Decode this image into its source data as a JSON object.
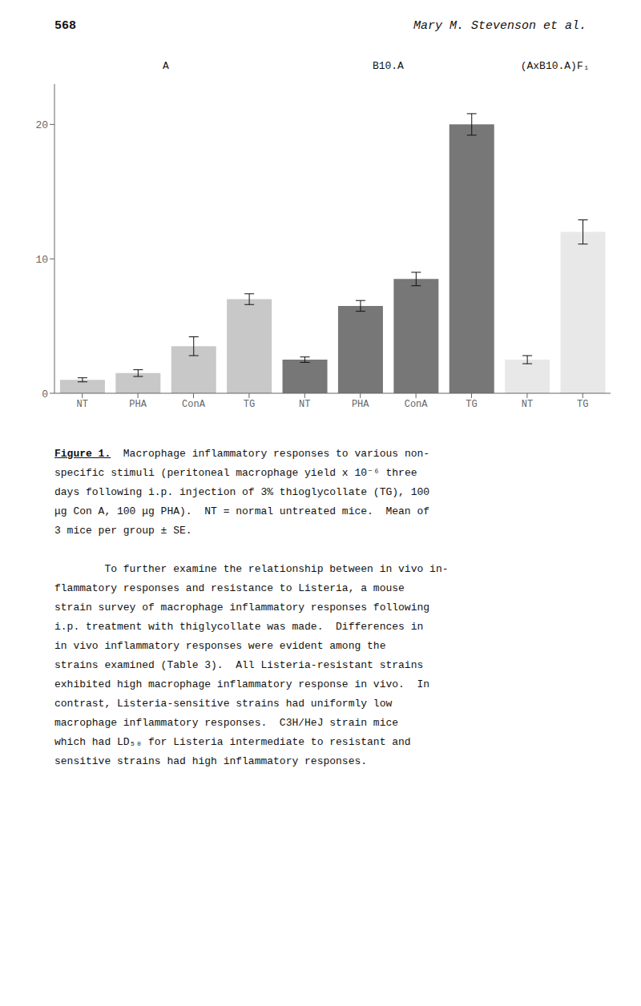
{
  "chart_data": {
    "type": "bar",
    "title": "568",
    "subtitle": "Mary M. Stevenson et al.",
    "categories": [
      "NT",
      "PHA",
      "ConA",
      "TG",
      "NT",
      "PHA",
      "ConA",
      "TG",
      "NT",
      "TG"
    ],
    "groups": [
      "A",
      "A",
      "A",
      "A",
      "B10.A",
      "B10.A",
      "B10.A",
      "B10.A",
      "(AxB10.A)F₁",
      "(AxB10.A)F₁"
    ],
    "values": [
      1.0,
      1.5,
      3.5,
      7.0,
      2.5,
      6.5,
      8.5,
      20.0,
      2.5,
      12.0
    ],
    "errors": [
      0.15,
      0.25,
      0.7,
      0.4,
      0.2,
      0.4,
      0.5,
      0.8,
      0.3,
      0.9
    ],
    "colors": [
      "#c8c8c8",
      "#c8c8c8",
      "#c8c8c8",
      "#c8c8c8",
      "#777777",
      "#777777",
      "#777777",
      "#777777",
      "#e8e8e8",
      "#e8e8e8"
    ],
    "ylim": [
      0,
      23
    ],
    "yticks": [
      0,
      10,
      20
    ],
    "grid": false,
    "caption_label": "Figure 1.",
    "caption": [
      "  Macrophage inflammatory responses to various non-",
      "specific stimuli (peritoneal macrophage yield x 10⁻⁶ three",
      "days following i.p. injection of 3% thioglycollate (TG), 100",
      "μg Con A, 100 μg PHA).  NT = normal untreated mice.  Mean of",
      "3 mice per group ± SE."
    ],
    "text": [
      "        To further examine the relationship between in vivo in-",
      "flammatory responses and resistance to Listeria, a mouse",
      "strain survey of macrophage inflammatory responses following",
      "i.p. treatment with thiglycollate was made.  Differences in",
      "in vivo inflammatory responses were evident among the",
      "strains examined (Table 3).  All Listeria-resistant strains",
      "exhibited high macrophage inflammatory response in vivo.  In",
      "contrast, Listeria-sensitive strains had uniformly low",
      "macrophage inflammatory responses.  C3H/HeJ strain mice",
      "which had LD₅₀ for Listeria intermediate to resistant and",
      "sensitive strains had high inflammatory responses."
    ]
  }
}
